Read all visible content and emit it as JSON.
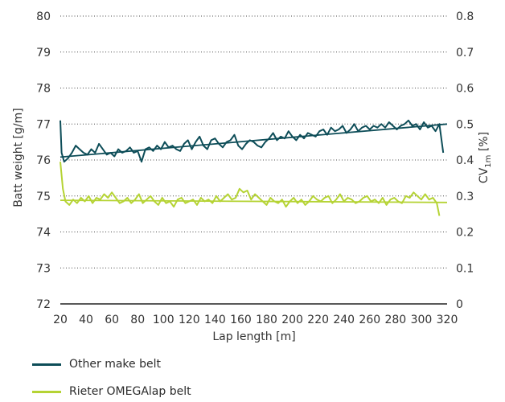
{
  "colors": {
    "other_make": "#0d4d58",
    "omegalap": "#b5d334",
    "grid": "#4a4a4a",
    "axis": "#222222"
  },
  "legend": [
    {
      "key": "other_make",
      "label": "Other make belt"
    },
    {
      "key": "omegalap",
      "label": "Rieter OMEGAlap belt"
    }
  ],
  "chart_data": {
    "type": "line",
    "xlabel": "Lap length [m]",
    "ylabel": "Batt weight [g/m]",
    "y2label_main": "CV",
    "y2label_sub": "1m",
    "y2label_tail": " [%]",
    "xlim": [
      20,
      320
    ],
    "ylim": [
      72,
      80
    ],
    "y2lim": [
      0,
      0.8
    ],
    "x_ticks": [
      "20",
      "40",
      "60",
      "80",
      "100",
      "120",
      "140",
      "160",
      "180",
      "200",
      "220",
      "240",
      "260",
      "280",
      "300",
      "320"
    ],
    "y_ticks": [
      "72",
      "73",
      "74",
      "75",
      "76",
      "77",
      "78",
      "79",
      "80"
    ],
    "y2_ticks": [
      "0",
      "0.1",
      "0.2",
      "0.3",
      "0.4",
      "0.5",
      "0.6",
      "0.7",
      "0.8"
    ],
    "grid": "horizontal dotted",
    "series": [
      {
        "name": "Other make belt",
        "color_key": "other_make",
        "x": [
          20,
          21,
          23,
          26,
          29,
          32,
          35,
          38,
          41,
          44,
          47,
          50,
          53,
          56,
          59,
          62,
          65,
          68,
          71,
          74,
          77,
          80,
          83,
          86,
          89,
          92,
          95,
          98,
          101,
          104,
          107,
          110,
          113,
          116,
          119,
          122,
          125,
          128,
          131,
          134,
          137,
          140,
          143,
          146,
          149,
          152,
          155,
          158,
          161,
          164,
          167,
          170,
          173,
          176,
          179,
          182,
          185,
          188,
          191,
          194,
          197,
          200,
          203,
          206,
          209,
          212,
          215,
          218,
          221,
          224,
          227,
          230,
          233,
          236,
          239,
          242,
          245,
          248,
          251,
          254,
          257,
          260,
          263,
          266,
          269,
          272,
          275,
          278,
          281,
          284,
          287,
          290,
          293,
          296,
          299,
          302,
          305,
          308,
          311,
          314,
          317
        ],
        "values": [
          77.1,
          76.2,
          75.95,
          76.05,
          76.2,
          76.4,
          76.3,
          76.2,
          76.15,
          76.3,
          76.2,
          76.45,
          76.3,
          76.15,
          76.2,
          76.1,
          76.3,
          76.2,
          76.25,
          76.35,
          76.2,
          76.25,
          75.95,
          76.3,
          76.35,
          76.25,
          76.4,
          76.3,
          76.5,
          76.35,
          76.4,
          76.3,
          76.25,
          76.45,
          76.55,
          76.3,
          76.5,
          76.65,
          76.4,
          76.3,
          76.55,
          76.6,
          76.45,
          76.35,
          76.5,
          76.55,
          76.7,
          76.4,
          76.3,
          76.45,
          76.55,
          76.5,
          76.4,
          76.35,
          76.5,
          76.6,
          76.75,
          76.55,
          76.65,
          76.6,
          76.8,
          76.65,
          76.55,
          76.7,
          76.6,
          76.75,
          76.7,
          76.65,
          76.8,
          76.85,
          76.7,
          76.9,
          76.8,
          76.85,
          76.95,
          76.75,
          76.85,
          77.0,
          76.8,
          76.9,
          76.95,
          76.85,
          76.95,
          76.9,
          77.0,
          76.9,
          77.05,
          76.95,
          76.85,
          76.95,
          77.0,
          77.1,
          76.95,
          77.0,
          76.85,
          77.05,
          76.9,
          76.95,
          76.8,
          77.0,
          76.2
        ]
      },
      {
        "name": "Rieter OMEGAlap belt",
        "color_key": "omegalap",
        "x": [
          20,
          22,
          24,
          27,
          30,
          33,
          36,
          39,
          42,
          45,
          48,
          51,
          54,
          57,
          60,
          63,
          66,
          69,
          72,
          75,
          78,
          81,
          84,
          87,
          90,
          93,
          96,
          99,
          102,
          105,
          108,
          111,
          114,
          117,
          120,
          123,
          126,
          129,
          132,
          135,
          138,
          141,
          144,
          147,
          150,
          153,
          156,
          159,
          162,
          165,
          168,
          171,
          174,
          177,
          180,
          183,
          186,
          189,
          192,
          195,
          198,
          201,
          204,
          207,
          210,
          213,
          216,
          219,
          222,
          225,
          228,
          231,
          234,
          237,
          240,
          243,
          246,
          249,
          252,
          255,
          258,
          261,
          264,
          267,
          270,
          273,
          276,
          279,
          282,
          285,
          288,
          291,
          294,
          297,
          300,
          303,
          306,
          309,
          312,
          314
        ],
        "values": [
          75.95,
          75.2,
          74.85,
          74.75,
          74.9,
          74.8,
          74.95,
          74.85,
          75.0,
          74.8,
          74.95,
          74.9,
          75.05,
          74.95,
          75.1,
          74.95,
          74.8,
          74.85,
          74.95,
          74.8,
          74.9,
          75.05,
          74.8,
          74.9,
          75.0,
          74.85,
          74.75,
          74.95,
          74.8,
          74.85,
          74.7,
          74.9,
          74.95,
          74.8,
          74.85,
          74.9,
          74.75,
          74.95,
          74.85,
          74.9,
          74.8,
          75.0,
          74.85,
          74.95,
          75.05,
          74.9,
          74.95,
          75.2,
          75.1,
          75.15,
          74.9,
          75.05,
          74.95,
          74.85,
          74.75,
          74.95,
          74.85,
          74.8,
          74.9,
          74.7,
          74.85,
          74.95,
          74.8,
          74.9,
          74.75,
          74.85,
          75.0,
          74.9,
          74.85,
          74.95,
          75.0,
          74.8,
          74.9,
          75.05,
          74.85,
          74.95,
          74.9,
          74.8,
          74.85,
          74.95,
          75.0,
          74.85,
          74.9,
          74.8,
          74.95,
          74.75,
          74.9,
          74.95,
          74.85,
          74.8,
          75.0,
          74.95,
          75.1,
          75.0,
          74.9,
          75.05,
          74.9,
          74.95,
          74.8,
          74.45
        ]
      },
      {
        "name": "Other make belt trend",
        "color_key": "other_make",
        "x": [
          20,
          320
        ],
        "values": [
          76.08,
          77.0
        ]
      },
      {
        "name": "Rieter OMEGAlap belt trend",
        "color_key": "omegalap",
        "x": [
          20,
          320
        ],
        "values": [
          74.88,
          74.82
        ]
      }
    ]
  }
}
